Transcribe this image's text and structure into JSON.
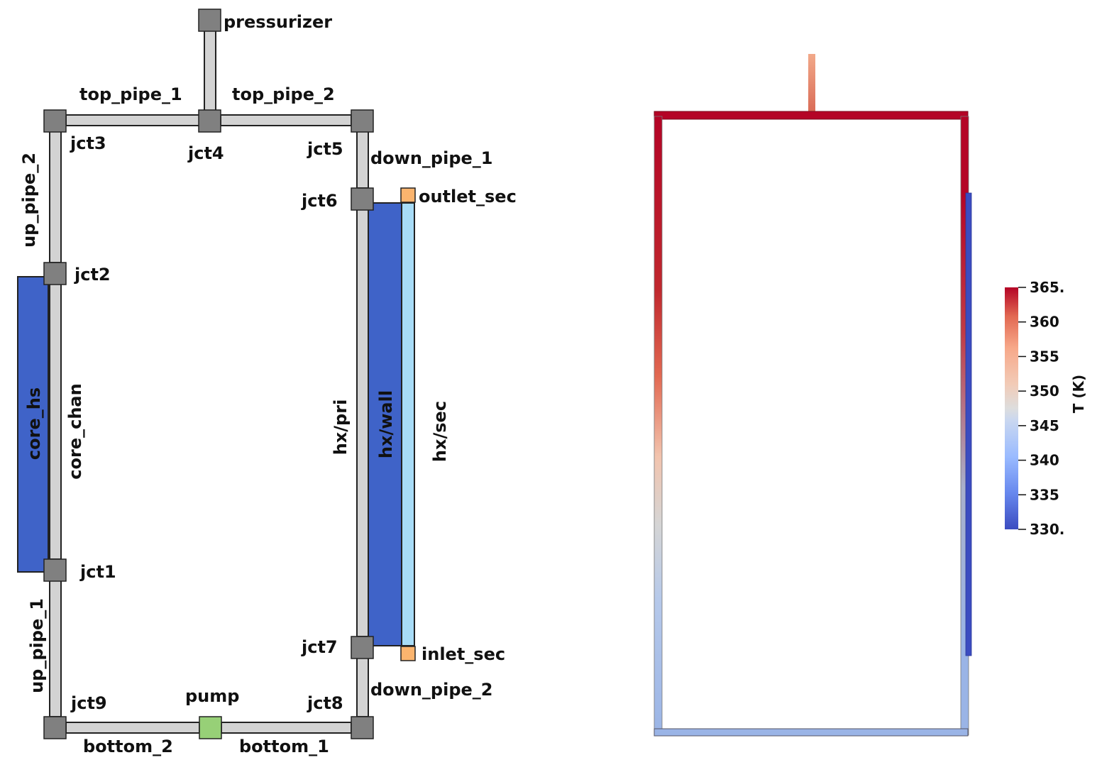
{
  "schematic": {
    "labels": {
      "pressurizer": "pressurizer",
      "top_pipe_1": "top_pipe_1",
      "top_pipe_2": "top_pipe_2",
      "jct3": "jct3",
      "jct4": "jct4",
      "jct5": "jct5",
      "down_pipe_1": "down_pipe_1",
      "up_pipe_2": "up_pipe_2",
      "jct6": "jct6",
      "outlet_sec": "outlet_sec",
      "jct2": "jct2",
      "core_hs": "core_hs",
      "core_chan": "core_chan",
      "hx_pri": "hx/pri",
      "hx_wall": "hx/wall",
      "hx_sec": "hx/sec",
      "jct1": "jct1",
      "up_pipe_1": "up_pipe_1",
      "jct7": "jct7",
      "inlet_sec": "inlet_sec",
      "down_pipe_2": "down_pipe_2",
      "jct9": "jct9",
      "pump": "pump",
      "jct8": "jct8",
      "bottom_2": "bottom_2",
      "bottom_1": "bottom_1"
    },
    "colors": {
      "pipe": "#d3d3d3",
      "junction": "#808080",
      "heat_structure": "#3f63c8",
      "secondary_channel": "#a8dcf7",
      "boundary": "#fbb46e",
      "pump": "#97d077"
    }
  },
  "colorbar": {
    "title": "T (K)",
    "min": 330,
    "max": 365,
    "ticks": [
      "365.",
      "360",
      "355",
      "350",
      "345",
      "340",
      "335",
      "330."
    ],
    "colors": {
      "low": "#3b4cc0",
      "mid": "#dddddd",
      "high": "#b40426"
    }
  }
}
